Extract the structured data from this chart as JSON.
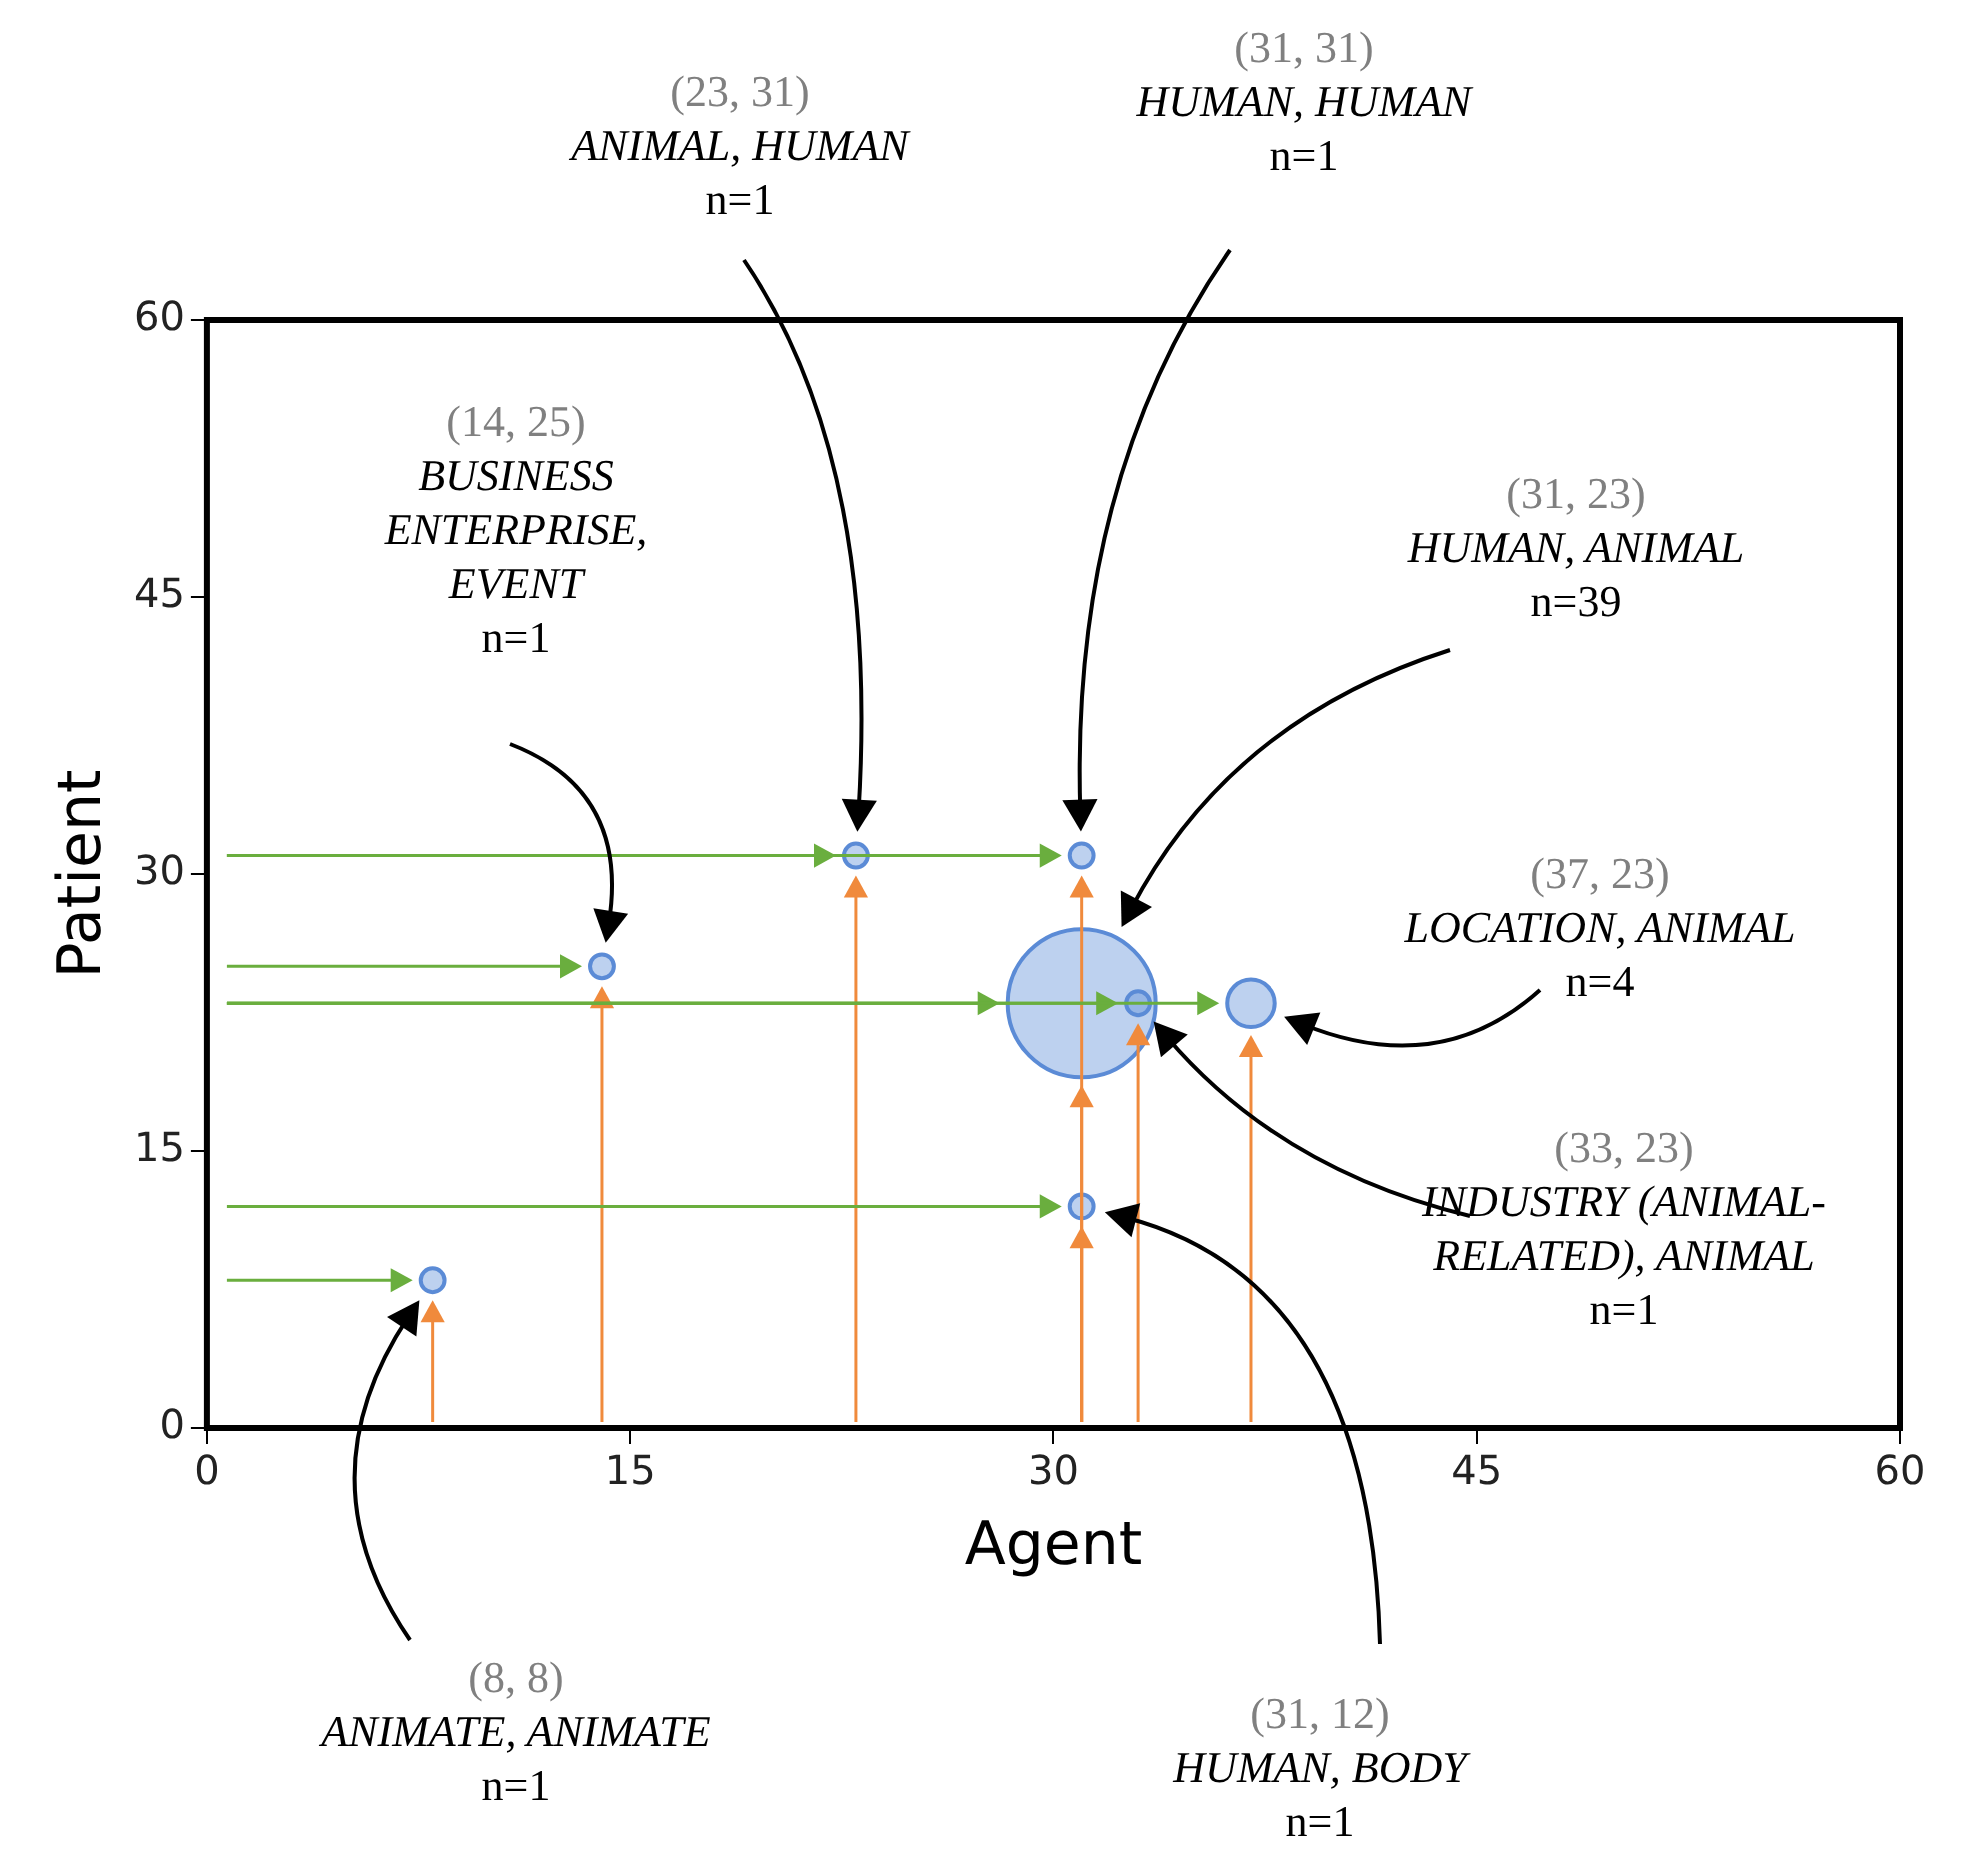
{
  "chart_data": {
    "type": "bubble",
    "xlabel": "Agent",
    "ylabel": "Patient",
    "xlim": [
      0,
      60
    ],
    "xticks": [
      0,
      15,
      30,
      45,
      60
    ],
    "ylim": [
      0,
      60
    ],
    "yticks": [
      0,
      15,
      30,
      45,
      60
    ],
    "legend": false,
    "series": [
      {
        "color": "#5b8bd6",
        "x": [
          8,
          14,
          23,
          31,
          31,
          33,
          37,
          31
        ],
        "values": [
          8,
          25,
          31,
          31,
          23,
          23,
          23,
          12
        ],
        "sizes": [
          0.026,
          0.026,
          0.026,
          0.026,
          1,
          0.026,
          0.103,
          0.026
        ]
      }
    ],
    "annotations": [
      "(8, 8)\nANIMATE, ANIMATE\nn=1",
      "(14, 25)\nBUSINESS\nENTERPRISE,\nEVENT\nn=1",
      "(23, 31)\nANIMAL, HUMAN\nn=1",
      "(31, 31)\nHUMAN, HUMAN\nn=1",
      "(31, 23)\nHUMAN, ANIMAL\nn=39",
      "(33, 23)\nINDUSTRY (ANIMAL-\nRELATED), ANIMAL\nn=1",
      "(37, 23)\nLOCATION, ANIMAL\nn=4",
      "(31, 12)\nHUMAN, BODY\nn=1"
    ]
  }
}
